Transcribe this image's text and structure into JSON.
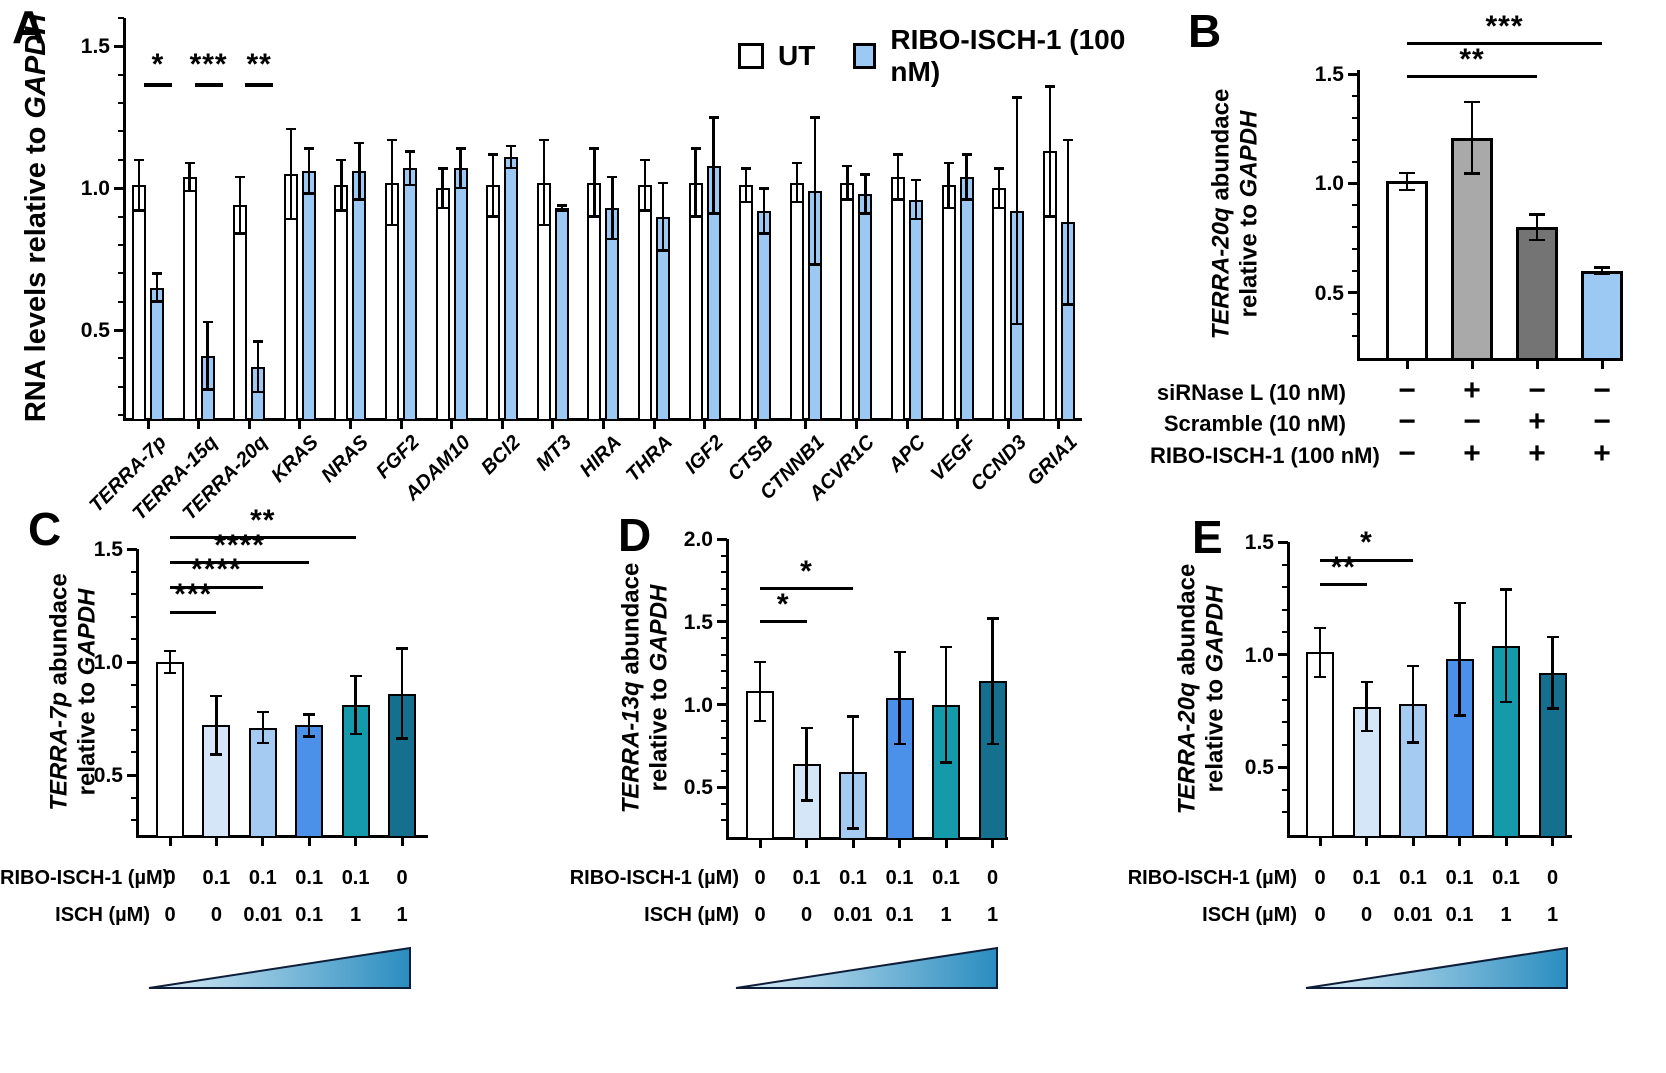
{
  "letters": {
    "A": "A",
    "B": "B",
    "C": "C",
    "D": "D",
    "E": "E"
  },
  "chart_data": [
    {
      "panel": "A",
      "type": "bar",
      "grouped": true,
      "ylabel_lines": [
        [
          {
            "t": "RNA levels relative to ",
            "i": false
          },
          {
            "t": "GAPDH",
            "i": true
          }
        ]
      ],
      "categories": [
        "TERRA-7p",
        "TERRA-15q",
        "TERRA-20q",
        "KRAS",
        "NRAS",
        "FGF2",
        "ADAM10",
        "BCl2",
        "MT3",
        "HIRA",
        "THRA",
        "IGF2",
        "CTSB",
        "CTNNB1",
        "ACVR1C",
        "APC",
        "VEGF",
        "CCND3",
        "GRIA1"
      ],
      "series": [
        {
          "name": "UT",
          "color": "#ffffff",
          "values": [
            1.01,
            1.04,
            0.94,
            1.05,
            1.01,
            1.02,
            1.0,
            1.01,
            1.02,
            1.02,
            1.01,
            1.02,
            1.01,
            1.02,
            1.02,
            1.04,
            1.01,
            1.0,
            1.13
          ],
          "errors": [
            0.09,
            0.05,
            0.1,
            0.16,
            0.09,
            0.15,
            0.07,
            0.11,
            0.15,
            0.12,
            0.09,
            0.12,
            0.06,
            0.07,
            0.06,
            0.08,
            0.08,
            0.07,
            0.23
          ]
        },
        {
          "name": "RIBO-ISCH-1 (100 nM)",
          "color": "#9cc9f4",
          "values": [
            0.65,
            0.41,
            0.37,
            1.06,
            1.06,
            1.07,
            1.07,
            1.11,
            0.93,
            0.93,
            0.9,
            1.08,
            0.92,
            0.99,
            0.98,
            0.96,
            1.04,
            0.92,
            0.88
          ],
          "errors": [
            0.05,
            0.12,
            0.09,
            0.08,
            0.1,
            0.06,
            0.07,
            0.04,
            0.01,
            0.11,
            0.12,
            0.17,
            0.08,
            0.26,
            0.07,
            0.07,
            0.08,
            0.4,
            0.29
          ]
        }
      ],
      "ylim": [
        0.19,
        1.6
      ],
      "yticks": [
        0.5,
        1.0,
        1.5
      ],
      "minor_step": 0.1,
      "grid": false,
      "legend": [
        {
          "label": "UT",
          "color": "#ffffff"
        },
        {
          "label": "RIBO-ISCH-1 (100 nM)",
          "color": "#9cc9f4"
        }
      ],
      "group_annotations": [
        {
          "group": 0,
          "label": "*"
        },
        {
          "group": 1,
          "label": "***"
        },
        {
          "group": 2,
          "label": "**"
        }
      ],
      "group_annotation_y": 1.37
    },
    {
      "panel": "B",
      "type": "bar",
      "ylabel_lines": [
        [
          {
            "t": "TERRA-20q",
            "i": true
          },
          {
            "t": " abundace",
            "i": false
          }
        ],
        [
          {
            "t": "relative to ",
            "i": false
          },
          {
            "t": "GAPDH",
            "i": true
          }
        ]
      ],
      "values": [
        1.01,
        1.21,
        0.8,
        0.6
      ],
      "errors": [
        0.04,
        0.165,
        0.06,
        0.015
      ],
      "colors": [
        "#ffffff",
        "#a9a9a9",
        "#747474",
        "#9cc9f4"
      ],
      "ylim": [
        0.2,
        1.52
      ],
      "yticks": [
        0.5,
        1.0,
        1.5
      ],
      "minor_step": 0.1,
      "grid": false,
      "span_annotations": [
        {
          "from": 0,
          "to": 2,
          "label": "**",
          "y": 1.49
        },
        {
          "from": 0,
          "to": 3,
          "label": "***",
          "y": 1.64
        }
      ],
      "conditions": [
        {
          "label": "siRNase L (10 nM)",
          "values": [
            "−",
            "+",
            "−",
            "−"
          ]
        },
        {
          "label": "Scramble (10 nM)",
          "values": [
            "−",
            "−",
            "+",
            "−"
          ]
        },
        {
          "label": "RIBO-ISCH-1 (100 nM)",
          "values": [
            "−",
            "+",
            "+",
            "+"
          ]
        }
      ]
    },
    {
      "panel": "C",
      "type": "bar",
      "ylabel_lines": [
        [
          {
            "t": "TERRA-7p",
            "i": true
          },
          {
            "t": " abundace",
            "i": false
          }
        ],
        [
          {
            "t": "relative to ",
            "i": false
          },
          {
            "t": "GAPDH",
            "i": true
          }
        ]
      ],
      "values": [
        1.0,
        0.72,
        0.71,
        0.72,
        0.81,
        0.86
      ],
      "errors": [
        0.05,
        0.13,
        0.07,
        0.05,
        0.13,
        0.2
      ],
      "colors": [
        "#ffffff",
        "#d4e6f8",
        "#a6cbf3",
        "#4b91ea",
        "#159aab",
        "#14708e"
      ],
      "ylim": [
        0.235,
        1.5
      ],
      "yticks": [
        0.5,
        1.0,
        1.5
      ],
      "minor_step": 0.1,
      "grid": false,
      "span_annotations": [
        {
          "from": 0,
          "to": 1,
          "label": "***",
          "y": 1.22
        },
        {
          "from": 0,
          "to": 2,
          "label": "****",
          "y": 1.33
        },
        {
          "from": 0,
          "to": 3,
          "label": "****",
          "y": 1.44
        },
        {
          "from": 0,
          "to": 4,
          "label": "**",
          "y": 1.55
        }
      ],
      "dose_rows": [
        {
          "label": "RIBO-ISCH-1 (µM)",
          "values": [
            "0",
            "0.1",
            "0.1",
            "0.1",
            "0.1",
            "0"
          ]
        },
        {
          "label": "ISCH (µM)",
          "values": [
            "0",
            "0",
            "0.01",
            "0.1",
            "1",
            "1"
          ]
        }
      ],
      "triangle": {
        "from": "#ddeef9",
        "to": "#2a8dbf"
      }
    },
    {
      "panel": "D",
      "type": "bar",
      "ylabel_lines": [
        [
          {
            "t": "TERRA-13q",
            "i": true
          },
          {
            "t": " abundace",
            "i": false
          }
        ],
        [
          {
            "t": "relative to ",
            "i": false
          },
          {
            "t": "GAPDH",
            "i": true
          }
        ]
      ],
      "values": [
        1.08,
        0.64,
        0.59,
        1.04,
        1.0,
        1.14
      ],
      "errors": [
        0.18,
        0.22,
        0.34,
        0.28,
        0.35,
        0.38
      ],
      "colors": [
        "#ffffff",
        "#d4e6f8",
        "#a6cbf3",
        "#4b91ea",
        "#159aab",
        "#14708e"
      ],
      "ylim": [
        0.2,
        2.0
      ],
      "yticks": [
        0.5,
        1.0,
        1.5,
        2.0
      ],
      "minor_step": 0.1,
      "grid": false,
      "span_annotations": [
        {
          "from": 0,
          "to": 1,
          "label": "*",
          "y": 1.5
        },
        {
          "from": 0,
          "to": 2,
          "label": "*",
          "y": 1.7
        }
      ],
      "dose_rows": [
        {
          "label": "RIBO-ISCH-1 (µM)",
          "values": [
            "0",
            "0.1",
            "0.1",
            "0.1",
            "0.1",
            "0"
          ]
        },
        {
          "label": "ISCH (µM)",
          "values": [
            "0",
            "0",
            "0.01",
            "0.1",
            "1",
            "1"
          ]
        }
      ],
      "triangle": {
        "from": "#ddeef9",
        "to": "#2a8dbf"
      }
    },
    {
      "panel": "E",
      "type": "bar",
      "ylabel_lines": [
        [
          {
            "t": "TERRA-20q",
            "i": true
          },
          {
            "t": " abundace",
            "i": false
          }
        ],
        [
          {
            "t": "relative to ",
            "i": false
          },
          {
            "t": "GAPDH",
            "i": true
          }
        ]
      ],
      "values": [
        1.01,
        0.77,
        0.78,
        0.98,
        1.04,
        0.92
      ],
      "errors": [
        0.11,
        0.11,
        0.17,
        0.25,
        0.25,
        0.16
      ],
      "colors": [
        "#ffffff",
        "#d4e6f8",
        "#a6cbf3",
        "#4b91ea",
        "#159aab",
        "#14708e"
      ],
      "ylim": [
        0.2,
        1.5
      ],
      "yticks": [
        0.5,
        1.0,
        1.5
      ],
      "minor_step": 0.1,
      "grid": false,
      "span_annotations": [
        {
          "from": 0,
          "to": 1,
          "label": "**",
          "y": 1.31
        },
        {
          "from": 0,
          "to": 2,
          "label": "*",
          "y": 1.42
        }
      ],
      "dose_rows": [
        {
          "label": "RIBO-ISCH-1 (µM)",
          "values": [
            "0",
            "0.1",
            "0.1",
            "0.1",
            "0.1",
            "0"
          ]
        },
        {
          "label": "ISCH (µM)",
          "values": [
            "0",
            "0",
            "0.01",
            "0.1",
            "1",
            "1"
          ]
        }
      ],
      "triangle": {
        "from": "#ddeef9",
        "to": "#2a8dbf"
      }
    }
  ]
}
